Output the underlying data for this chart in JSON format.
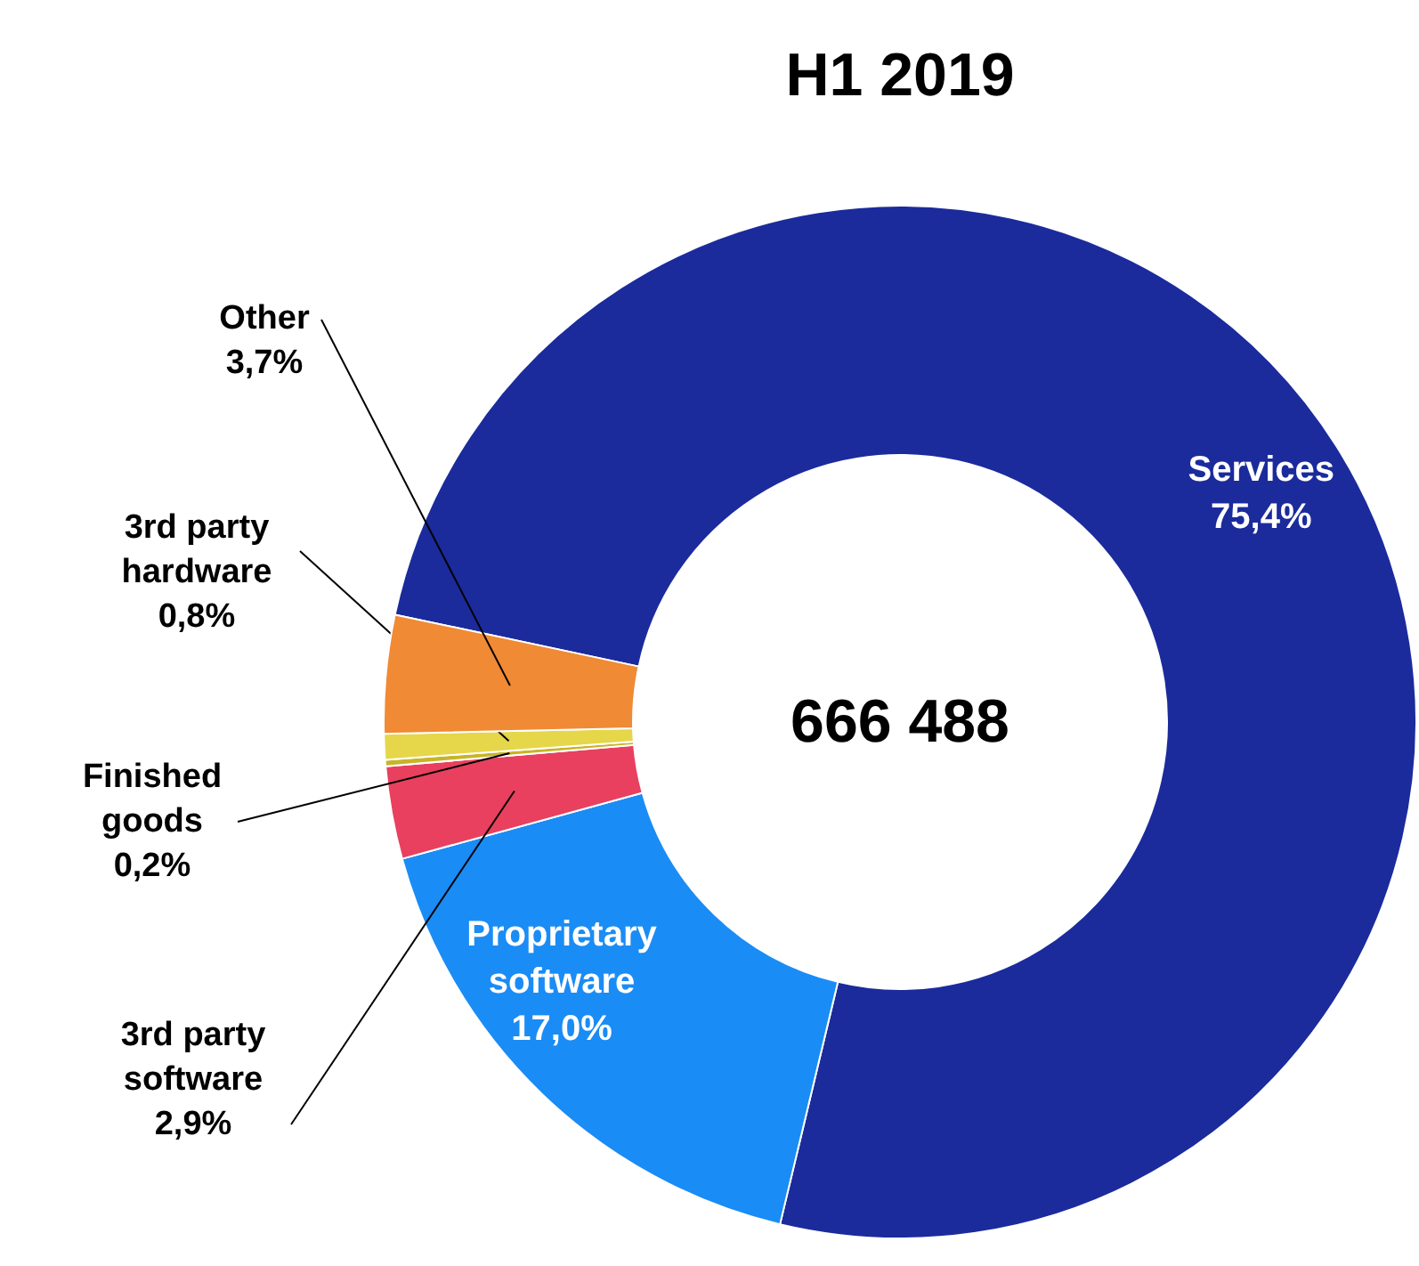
{
  "chart_data": {
    "type": "donut",
    "title": "H1 2019",
    "categories": [
      "Services",
      "Proprietary software",
      "3rd party software",
      "Finished goods",
      "3rd party hardware",
      "Other"
    ],
    "values": [
      75.4,
      17.0,
      2.9,
      0.2,
      0.8,
      3.7
    ],
    "value_labels": [
      "75,4%",
      "17,0%",
      "2,9%",
      "0,2%",
      "0,8%",
      "3,7%"
    ],
    "colors": [
      "#1b2b9c",
      "#1a8cf5",
      "#e8405e",
      "#c8b428",
      "#e6d64a",
      "#f08a34"
    ],
    "annotations": [
      "666 488"
    ]
  }
}
